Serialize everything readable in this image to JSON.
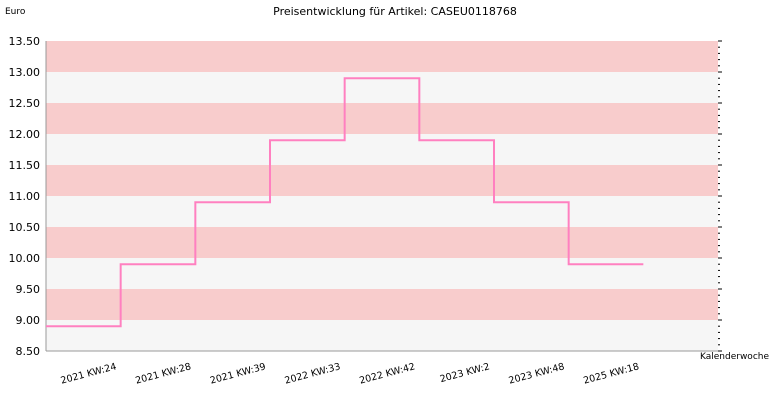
{
  "chart_data": {
    "type": "line",
    "title": "Preisentwicklung für Artikel: CASEU0118768",
    "ylabel": "Euro",
    "xlabel": "Kalenderwoche",
    "ylim": [
      8.5,
      13.5
    ],
    "yticks": [
      "8.50",
      "9.00",
      "9.50",
      "10.00",
      "10.50",
      "11.00",
      "11.50",
      "12.00",
      "12.50",
      "13.00",
      "13.50"
    ],
    "categories": [
      "2021 KW:24",
      "2021 KW:28",
      "2021 KW:39",
      "2022 KW:33",
      "2022 KW:42",
      "2023 KW:2",
      "2023 KW:48",
      "2025 KW:18"
    ],
    "series": [
      {
        "values": [
          8.9,
          9.9,
          10.9,
          11.9,
          12.9,
          11.9,
          10.9,
          9.9
        ]
      }
    ],
    "step": true,
    "grid": "alternating horizontal bands",
    "colors": {
      "line": "#ff80c0",
      "band_dark": "#f8cccc",
      "band_light": "#f6f6f6"
    }
  }
}
